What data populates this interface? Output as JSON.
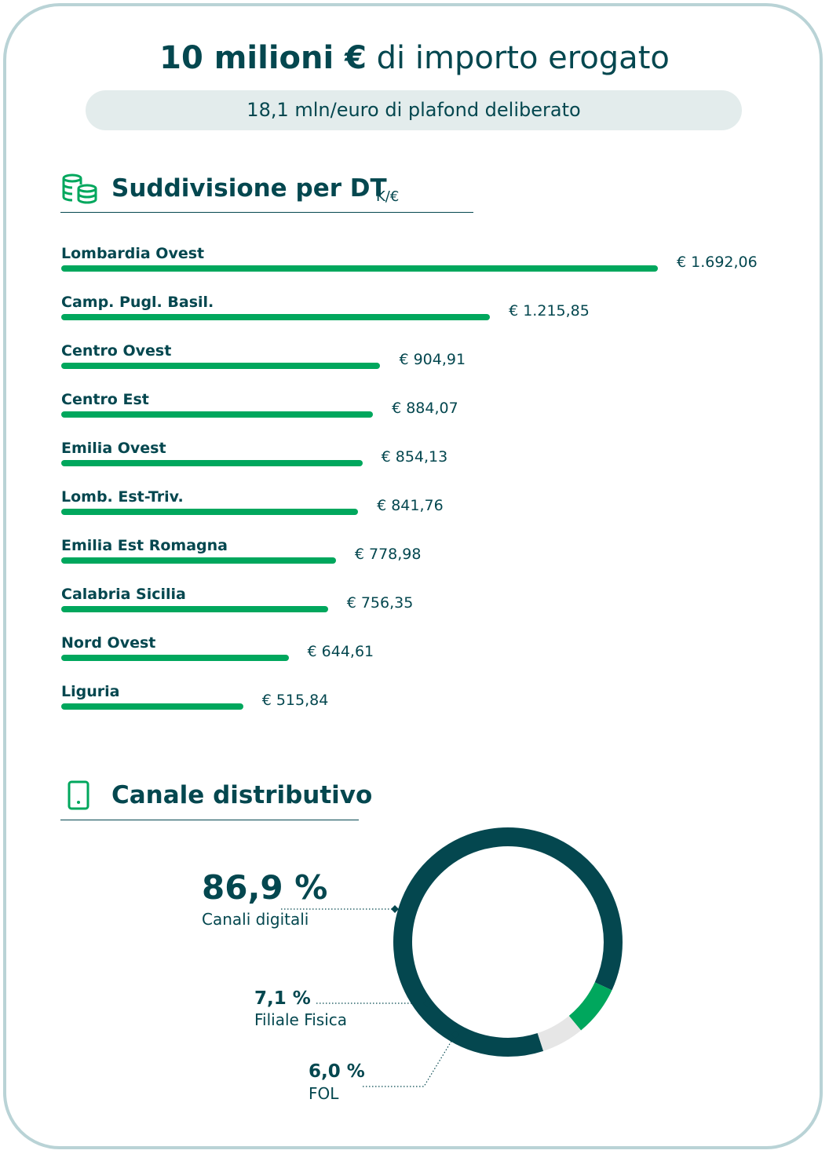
{
  "header": {
    "title_strong": "10 milioni €",
    "title_rest": " di importo erogato",
    "subtitle": "18,1 mln/euro di plafond deliberato"
  },
  "section_dt": {
    "title": "Suddivisione per DT",
    "unit": "K/€",
    "icon": "coins-icon"
  },
  "section_channel": {
    "title": "Canale distributivo",
    "icon": "smartphone-icon"
  },
  "colors": {
    "dark_teal": "#04474f",
    "green": "#00a75d",
    "light_gray": "#e6e6e6",
    "border": "#b9d3d6"
  },
  "chart_data": [
    {
      "type": "bar",
      "orientation": "horizontal",
      "categories": [
        "Lombardia Ovest",
        "Camp. Pugl. Basil.",
        "Centro Ovest",
        "Centro Est",
        "Emilia Ovest",
        "Lomb. Est-Triv.",
        "Emilia Est Romagna",
        "Calabria Sicilia",
        "Nord Ovest",
        "Liguria"
      ],
      "values": [
        1692.06,
        1215.85,
        904.91,
        884.07,
        854.13,
        841.76,
        778.98,
        756.35,
        644.61,
        515.84
      ],
      "value_labels": [
        "€ 1.692,06",
        "€ 1.215,85",
        "€ 904,91",
        "€ 884,07",
        "€ 854,13",
        "€ 841,76",
        "€ 778,98",
        "€ 756,35",
        "€ 644,61",
        "€ 515,84"
      ],
      "title": "Suddivisione per DT",
      "unit": "K/€"
    },
    {
      "type": "pie",
      "donut": true,
      "categories": [
        "Canali digitali",
        "Filiale Fisica",
        "FOL"
      ],
      "values": [
        86.9,
        7.1,
        6.0
      ],
      "value_labels": [
        "86,9 %",
        "7,1 %",
        "6,0 %"
      ],
      "title": "Canale distributivo"
    }
  ]
}
